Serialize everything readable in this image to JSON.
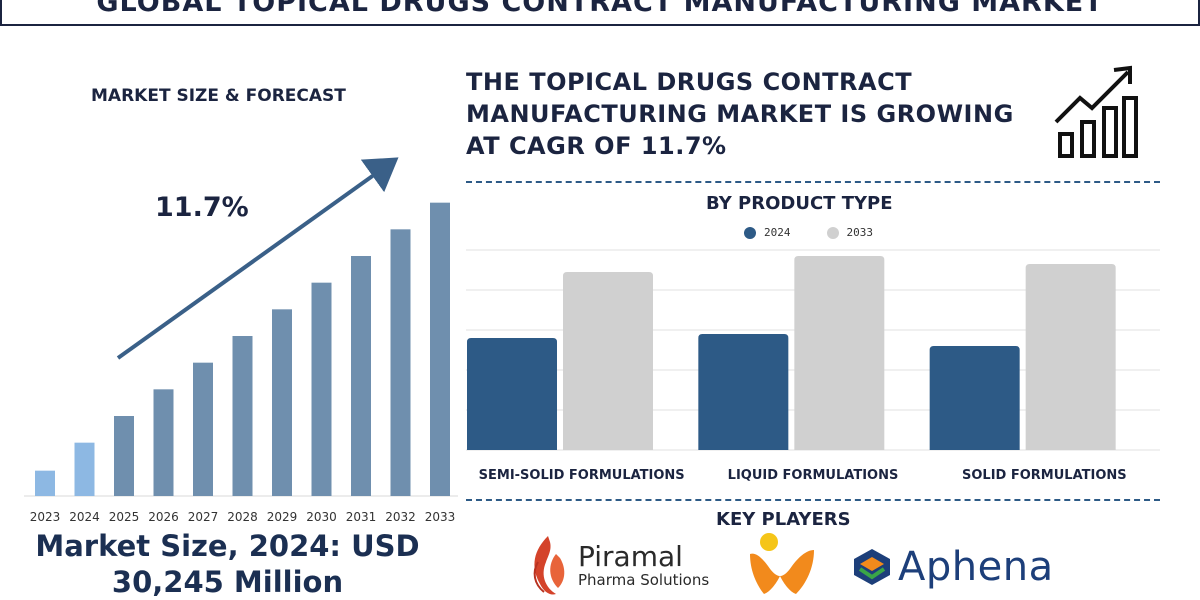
{
  "title": "GLOBAL TOPICAL DRUGS CONTRACT MANUFACTURING MARKET",
  "left_section_label": "MARKET SIZE & FORECAST",
  "cagr_label": "11.7%",
  "headline": "THE TOPICAL DRUGS CONTRACT MANUFACTURING MARKET IS GROWING AT CAGR OF 11.7%",
  "market_size_text": "Market Size, 2024: USD 30,245 Million",
  "right_section_label": "BY PRODUCT TYPE",
  "key_players_label": "KEY PLAYERS",
  "players": {
    "piramal": {
      "name": "Piramal",
      "sub": "Pharma Solutions"
    },
    "aphena": {
      "name": "Aphena"
    }
  },
  "colors": {
    "navy": "#1b2440",
    "bar_dark": "#2d5a86",
    "bar_light": "#d0d0d0",
    "forecast_bar": "#6f8fae",
    "highlight_bar": "#8db8e3",
    "arrow": "#3a6088"
  },
  "chart_data": [
    {
      "type": "bar",
      "categories": [
        "2023",
        "2024",
        "2025",
        "2026",
        "2027",
        "2028",
        "2029",
        "2030",
        "2031",
        "2032",
        "2033"
      ],
      "values": [
        9.5,
        20,
        30,
        40,
        50,
        60,
        70,
        80,
        90,
        100,
        110
      ],
      "highlight": [
        "2023",
        "2024"
      ],
      "ylim": [
        0,
        120
      ],
      "grid": false,
      "legend": "none"
    },
    {
      "type": "bar",
      "title": "BY PRODUCT TYPE",
      "categories": [
        "SEMI-SOLID FORMULATIONS",
        "LIQUID FORMULATIONS",
        "SOLID FORMULATIONS"
      ],
      "series": [
        {
          "name": "2024",
          "values": [
            56,
            58,
            52
          ]
        },
        {
          "name": "2033",
          "values": [
            89,
            97,
            93
          ]
        }
      ],
      "ylim": [
        0,
        100
      ],
      "grid": true,
      "legend": "top-center"
    }
  ]
}
